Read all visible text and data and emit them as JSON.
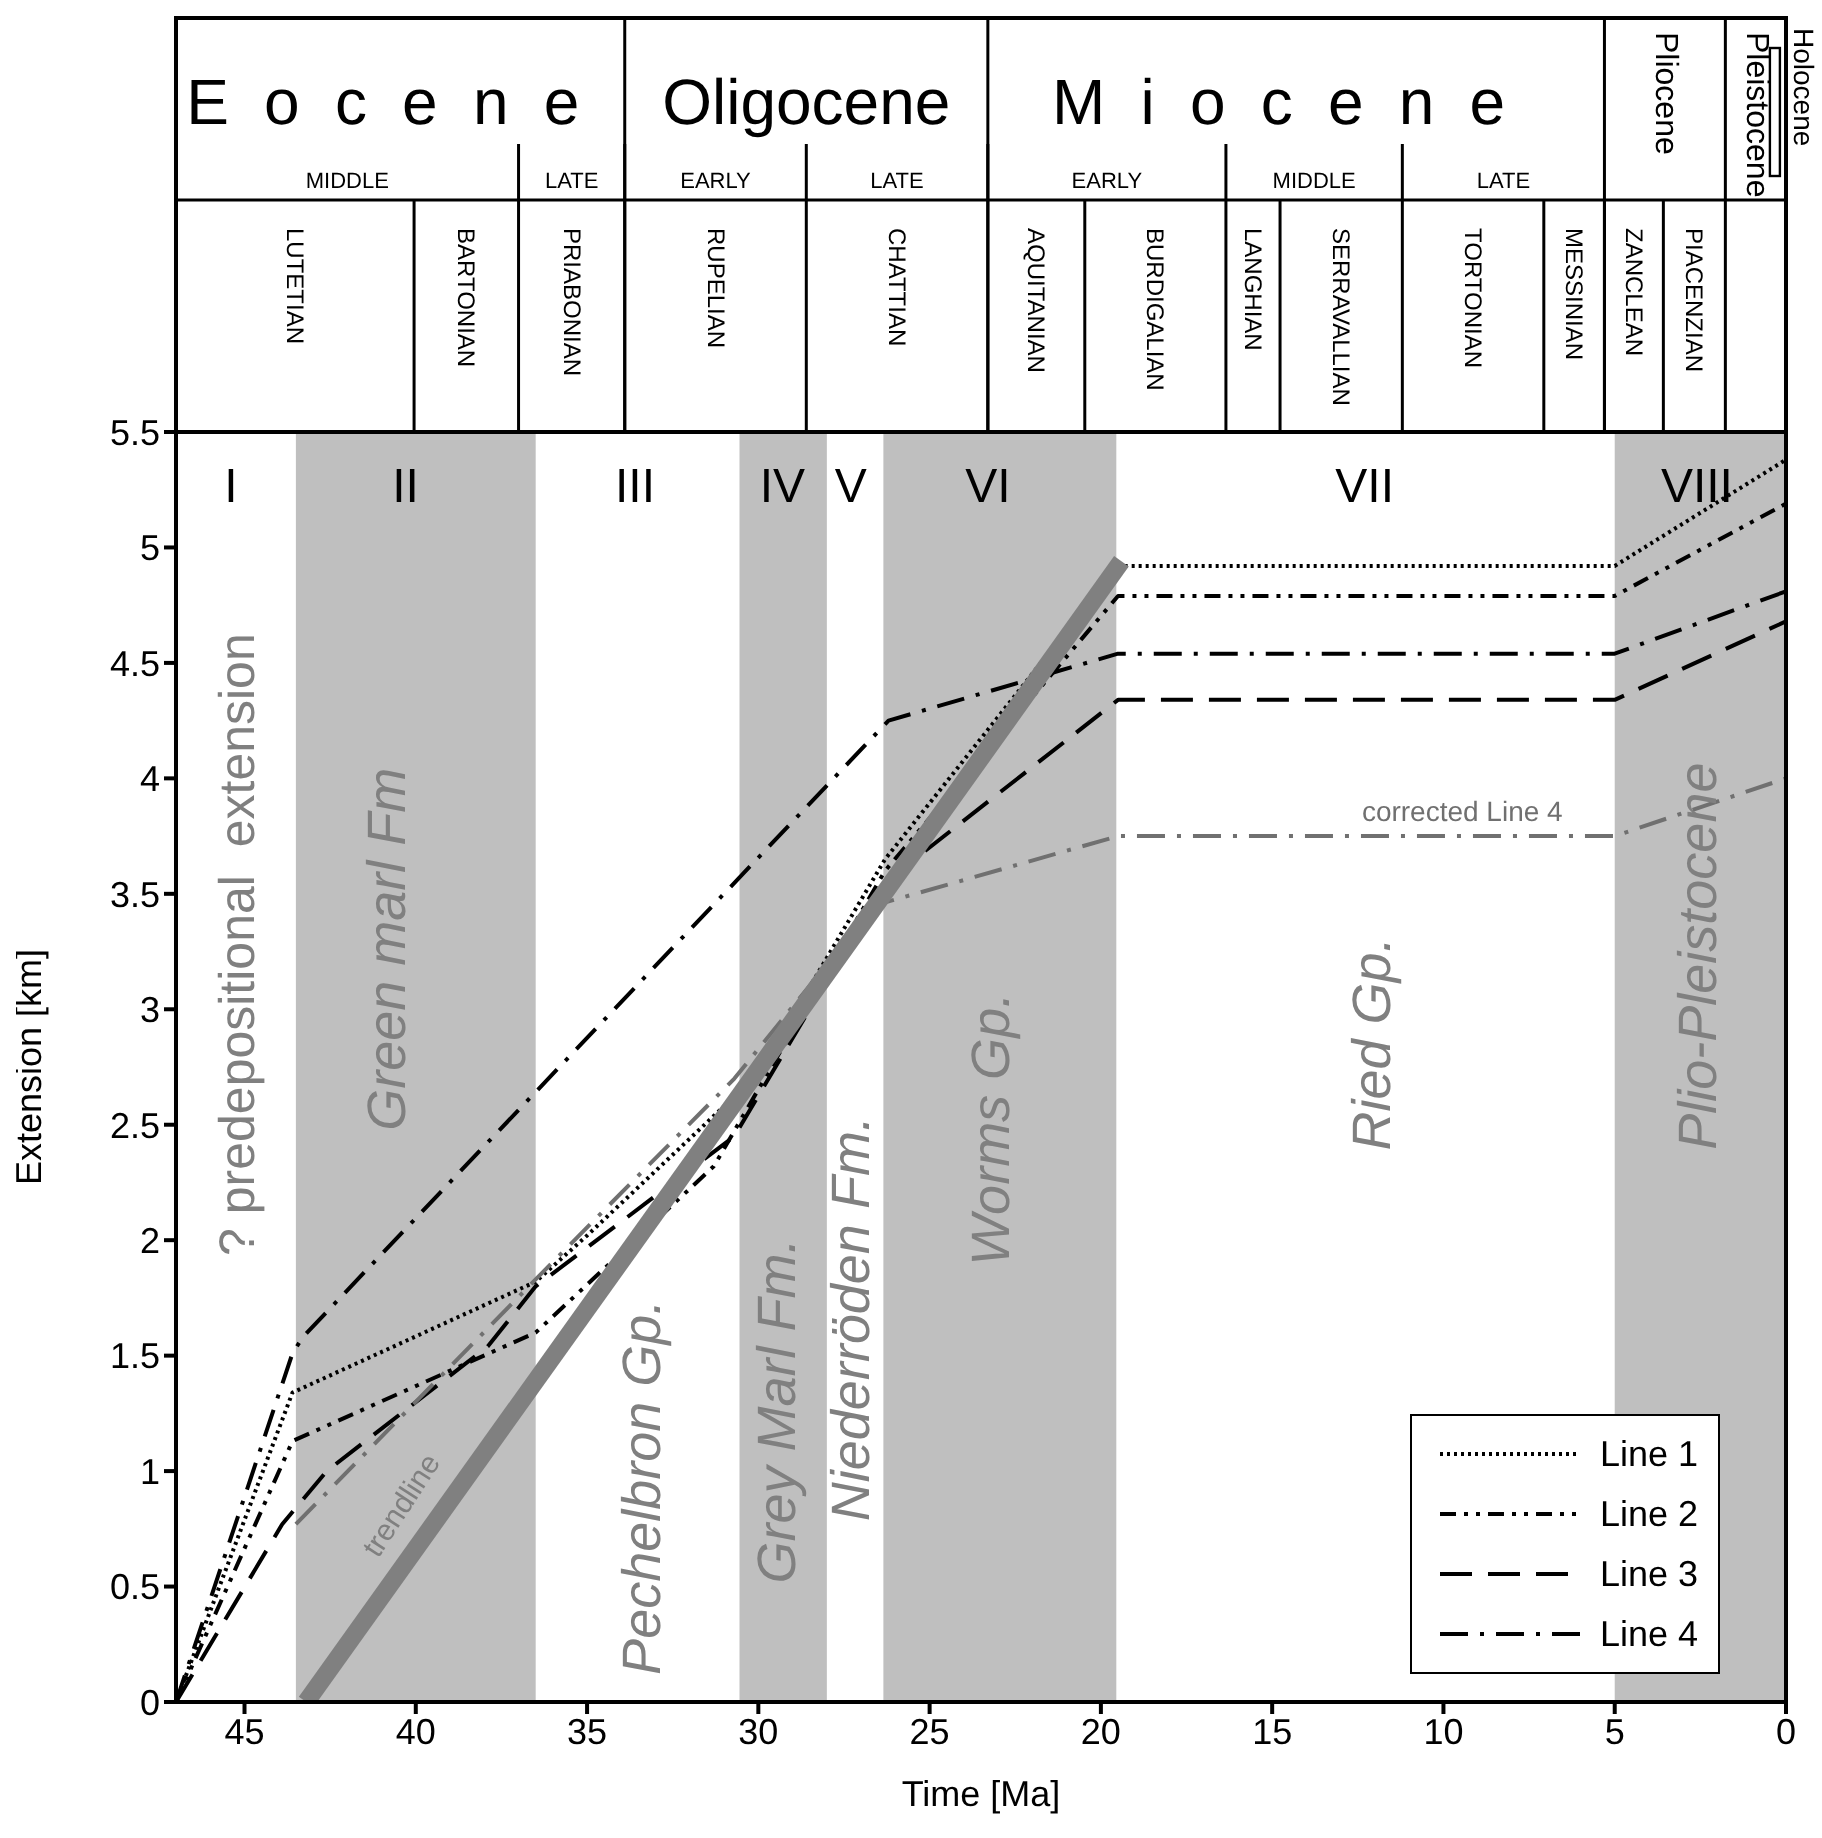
{
  "chart_data": {
    "type": "line",
    "xlabel": "Time [Ma]",
    "ylabel": "Extension [km]",
    "xlim": [
      47,
      0
    ],
    "xticks": [
      45,
      40,
      35,
      30,
      25,
      20,
      15,
      10,
      5,
      0
    ],
    "ylim": [
      0,
      5.5
    ],
    "yticks": [
      0,
      0.5,
      1,
      1.5,
      2,
      2.5,
      3,
      3.5,
      4,
      4.5,
      5,
      5.5
    ],
    "grid": false,
    "legend": "bottom right",
    "marker": "none",
    "series": [
      {
        "name": "Line 1",
        "color": "#000000",
        "line_style": "dotted",
        "x": [
          47,
          43.6,
          36.5,
          35,
          30,
          26.3,
          19.5,
          5,
          0
        ],
        "values": [
          0,
          1.34,
          1.82,
          2.02,
          2.72,
          3.65,
          4.92,
          4.92,
          5.38
        ]
      },
      {
        "name": "Line 2",
        "color": "#000000",
        "line_style": "dashdotdot",
        "x": [
          47,
          43.6,
          36.5,
          31.3,
          26.3,
          19.5,
          5,
          0
        ],
        "values": [
          0,
          1.13,
          1.6,
          2.32,
          3.6,
          4.79,
          4.79,
          5.19
        ]
      },
      {
        "name": "Line 3",
        "color": "#000000",
        "line_style": "dashed",
        "x": [
          47,
          43.9,
          42.6,
          37.9,
          36.5,
          30.7,
          26.3,
          19.5,
          5,
          0
        ],
        "values": [
          0,
          0.77,
          1.0,
          1.54,
          1.8,
          2.45,
          3.55,
          4.34,
          4.34,
          4.68
        ]
      },
      {
        "name": "Line 4",
        "color": "#000000",
        "line_style": "dashdot",
        "x": [
          47,
          43.6,
          43.3,
          26.2,
          19.5,
          5,
          0
        ],
        "values": [
          0,
          1.51,
          1.58,
          4.25,
          4.54,
          4.54,
          4.81
        ]
      },
      {
        "color": "#707070",
        "line_style": "dashdot",
        "x": [
          43.5,
          36.5,
          30.7,
          26.6,
          19.5,
          5,
          0
        ],
        "values": [
          0.77,
          1.83,
          2.7,
          3.45,
          3.75,
          3.75,
          4.0
        ]
      },
      {
        "color": "#808080",
        "line_style": "solid",
        "x": [
          43.2,
          19.4
        ],
        "values": [
          0,
          4.94
        ]
      }
    ],
    "bands": [
      {
        "axis": "x",
        "from": 43.5,
        "to": 36.5,
        "color": "#bfbfbf"
      },
      {
        "axis": "x",
        "from": 30.55,
        "to": 28.0,
        "color": "#bfbfbf"
      },
      {
        "axis": "x",
        "from": 26.35,
        "to": 19.55,
        "color": "#bfbfbf"
      },
      {
        "axis": "x",
        "from": 5,
        "to": 0,
        "color": "#bfbfbf"
      }
    ],
    "annotations": [
      "Eocene",
      "Oligocene",
      "Miocene",
      "Pliocene",
      "Pleistocene",
      "Holocene",
      "MIDDLE",
      "LATE",
      "EARLY",
      "LATE",
      "EARLY",
      "MIDDLE",
      "LATE",
      "LUTETIAN",
      "BARTONIAN",
      "PRIABONIAN",
      "RUPELIAN",
      "CHATTIAN",
      "AQUITANIAN",
      "BURDIGALIAN",
      "LANGHIAN",
      "SERRAVALLIAN",
      "TORTONIAN",
      "MESSINIAN",
      "ZANCLEAN",
      "PIACENZIAN",
      "I",
      "II",
      "III",
      "IV",
      "V",
      "VI",
      "VII",
      "VIII",
      "? predepositional  extension",
      "Green marl Fm",
      "Pechelbron Gp.",
      "Grey Marl Fm.",
      "Niederröden Fm.",
      "Worms Gp.",
      "Ried Gp.",
      "Plio-Pleistocene",
      "trendline",
      "corrected Line 4"
    ]
  }
}
